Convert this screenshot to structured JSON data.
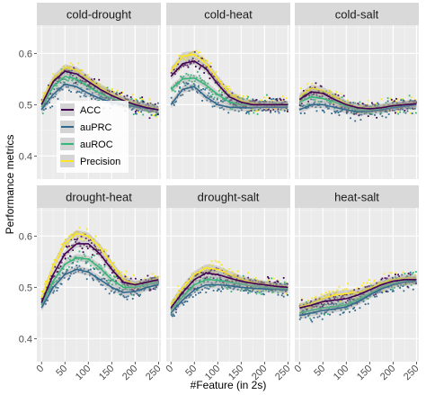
{
  "chart_data": {
    "type": "scatter",
    "facets": [
      "cold-drought",
      "cold-heat",
      "cold-salt",
      "drought-heat",
      "drought-salt",
      "heat-salt"
    ],
    "xlabel": "#Feature (in 2s)",
    "ylabel": "Performance metrics",
    "x_ticks": [
      0,
      50,
      100,
      150,
      200,
      250
    ],
    "y_ticks": [
      0.4,
      0.5,
      0.6
    ],
    "xlim": [
      -10,
      255
    ],
    "ylim": [
      0.355,
      0.655
    ],
    "grid": true,
    "legend_position": "inside-left of first panel",
    "series": [
      {
        "name": "ACC",
        "color": "#440154"
      },
      {
        "name": "auPRC",
        "color": "#31688E"
      },
      {
        "name": "auROC",
        "color": "#35B779"
      },
      {
        "name": "Precision",
        "color": "#FDE725"
      }
    ],
    "trends": {
      "cold-drought": {
        "x": [
          0,
          25,
          50,
          75,
          100,
          125,
          150,
          175,
          200,
          225,
          250
        ],
        "ACC": [
          0.5,
          0.545,
          0.565,
          0.56,
          0.545,
          0.53,
          0.518,
          0.508,
          0.5,
          0.494,
          0.49
        ],
        "auPRC": [
          0.49,
          0.52,
          0.54,
          0.535,
          0.522,
          0.512,
          0.505,
          0.5,
          0.496,
          0.493,
          0.49
        ],
        "auROC": [
          0.495,
          0.535,
          0.555,
          0.55,
          0.535,
          0.522,
          0.512,
          0.505,
          0.498,
          0.494,
          0.49
        ],
        "Precision": [
          0.505,
          0.55,
          0.572,
          0.567,
          0.55,
          0.534,
          0.52,
          0.51,
          0.502,
          0.496,
          0.492
        ]
      },
      "cold-heat": {
        "x": [
          0,
          25,
          50,
          75,
          100,
          125,
          150,
          175,
          200,
          225,
          250
        ],
        "ACC": [
          0.555,
          0.58,
          0.585,
          0.57,
          0.54,
          0.515,
          0.505,
          0.5,
          0.5,
          0.5,
          0.5
        ],
        "auPRC": [
          0.5,
          0.53,
          0.535,
          0.515,
          0.5,
          0.495,
          0.494,
          0.494,
          0.495,
          0.495,
          0.495
        ],
        "auROC": [
          0.53,
          0.55,
          0.552,
          0.538,
          0.52,
          0.505,
          0.5,
          0.5,
          0.5,
          0.5,
          0.5
        ],
        "Precision": [
          0.565,
          0.595,
          0.598,
          0.58,
          0.55,
          0.522,
          0.508,
          0.502,
          0.5,
          0.5,
          0.5
        ]
      },
      "cold-salt": {
        "x": [
          0,
          25,
          50,
          75,
          100,
          125,
          150,
          175,
          200,
          225,
          250
        ],
        "ACC": [
          0.51,
          0.525,
          0.522,
          0.51,
          0.5,
          0.494,
          0.492,
          0.494,
          0.498,
          0.5,
          0.502
        ],
        "auPRC": [
          0.49,
          0.5,
          0.5,
          0.495,
          0.49,
          0.486,
          0.487,
          0.49,
          0.494,
          0.497,
          0.5
        ],
        "auROC": [
          0.505,
          0.515,
          0.512,
          0.505,
          0.497,
          0.49,
          0.49,
          0.492,
          0.496,
          0.499,
          0.501
        ],
        "Precision": [
          0.515,
          0.532,
          0.528,
          0.515,
          0.502,
          0.495,
          0.493,
          0.495,
          0.499,
          0.501,
          0.503
        ]
      },
      "drought-heat": {
        "x": [
          0,
          25,
          50,
          75,
          100,
          125,
          150,
          175,
          200,
          225,
          250
        ],
        "ACC": [
          0.47,
          0.525,
          0.565,
          0.585,
          0.585,
          0.565,
          0.535,
          0.51,
          0.505,
          0.51,
          0.515
        ],
        "auPRC": [
          0.46,
          0.5,
          0.525,
          0.535,
          0.53,
          0.515,
          0.5,
          0.49,
          0.492,
          0.5,
          0.505
        ],
        "auROC": [
          0.465,
          0.512,
          0.545,
          0.558,
          0.555,
          0.538,
          0.515,
          0.5,
          0.5,
          0.506,
          0.51
        ],
        "Precision": [
          0.48,
          0.54,
          0.585,
          0.605,
          0.6,
          0.578,
          0.545,
          0.515,
          0.506,
          0.51,
          0.515
        ]
      },
      "drought-salt": {
        "x": [
          0,
          25,
          50,
          75,
          100,
          125,
          150,
          175,
          200,
          225,
          250
        ],
        "ACC": [
          0.46,
          0.49,
          0.515,
          0.528,
          0.525,
          0.518,
          0.512,
          0.508,
          0.505,
          0.502,
          0.5
        ],
        "auPRC": [
          0.45,
          0.475,
          0.495,
          0.505,
          0.505,
          0.503,
          0.5,
          0.498,
          0.497,
          0.496,
          0.495
        ],
        "auROC": [
          0.455,
          0.482,
          0.505,
          0.515,
          0.514,
          0.51,
          0.506,
          0.503,
          0.5,
          0.498,
          0.497
        ],
        "Precision": [
          0.465,
          0.498,
          0.525,
          0.538,
          0.535,
          0.525,
          0.516,
          0.51,
          0.506,
          0.503,
          0.5
        ]
      },
      "heat-salt": {
        "x": [
          0,
          25,
          50,
          75,
          100,
          125,
          150,
          175,
          200,
          225,
          250
        ],
        "ACC": [
          0.46,
          0.465,
          0.472,
          0.475,
          0.478,
          0.485,
          0.495,
          0.505,
          0.512,
          0.515,
          0.515
        ],
        "auPRC": [
          0.445,
          0.45,
          0.455,
          0.458,
          0.462,
          0.472,
          0.485,
          0.497,
          0.505,
          0.51,
          0.512
        ],
        "auROC": [
          0.45,
          0.455,
          0.46,
          0.462,
          0.466,
          0.476,
          0.488,
          0.5,
          0.508,
          0.512,
          0.514
        ],
        "Precision": [
          0.462,
          0.468,
          0.478,
          0.485,
          0.488,
          0.49,
          0.498,
          0.508,
          0.515,
          0.518,
          0.518
        ]
      }
    }
  }
}
